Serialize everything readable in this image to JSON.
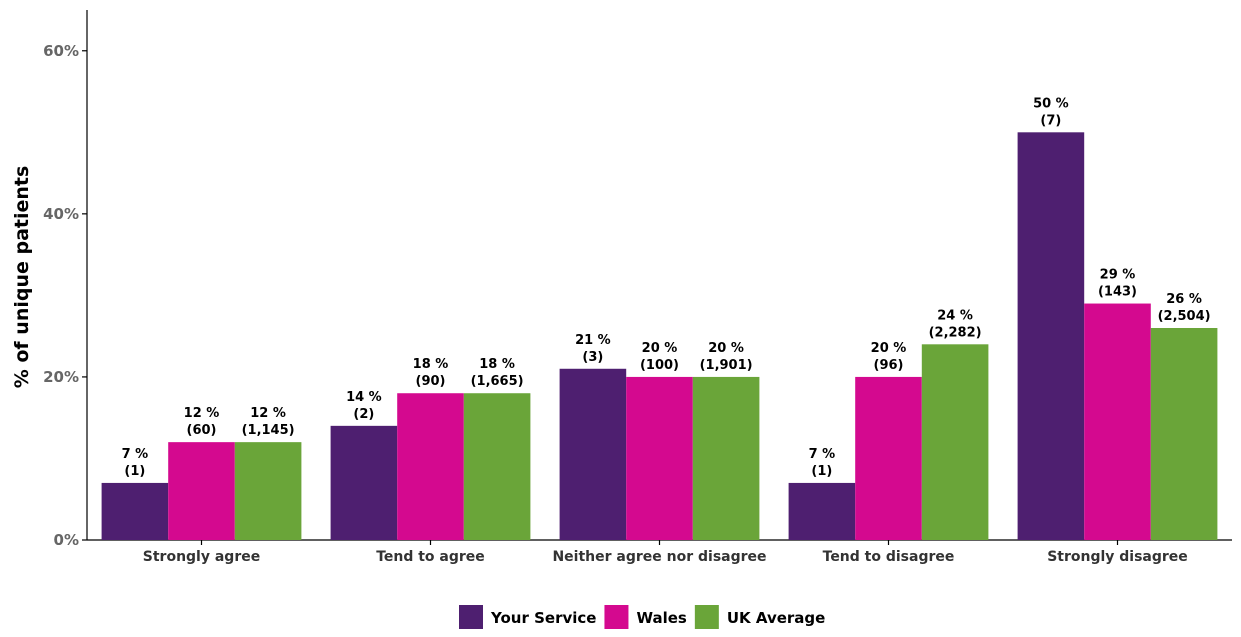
{
  "chart_data": {
    "type": "bar",
    "title": "",
    "xlabel": "",
    "ylabel": "% of unique patients",
    "ylim": [
      0,
      65
    ],
    "yticks": [
      0,
      20,
      40,
      60
    ],
    "ytick_labels": [
      "0%",
      "20%",
      "40%",
      "60%"
    ],
    "grid": false,
    "legend_position": "bottom",
    "categories": [
      "Strongly agree",
      "Tend to agree",
      "Neither agree nor disagree",
      "Tend to disagree",
      "Strongly disagree"
    ],
    "series": [
      {
        "name": "Your Service",
        "color": "#4e1f70",
        "values": [
          7,
          14,
          21,
          7,
          50
        ],
        "value_labels": [
          "7 %",
          "14 %",
          "21 %",
          "7 %",
          "50 %"
        ],
        "count_labels": [
          "(1)",
          "(2)",
          "(3)",
          "(1)",
          "(7)"
        ]
      },
      {
        "name": "Wales",
        "color": "#d4098f",
        "values": [
          12,
          18,
          20,
          20,
          29
        ],
        "value_labels": [
          "12 %",
          "18 %",
          "20 %",
          "20 %",
          "29 %"
        ],
        "count_labels": [
          "(60)",
          "(90)",
          "(100)",
          "(96)",
          "(143)"
        ]
      },
      {
        "name": "UK Average",
        "color": "#6aa539",
        "values": [
          12,
          18,
          20,
          24,
          26
        ],
        "value_labels": [
          "12 %",
          "18 %",
          "20 %",
          "24 %",
          "26 %"
        ],
        "count_labels": [
          "(1,145)",
          "(1,665)",
          "(1,901)",
          "(2,282)",
          "(2,504)"
        ]
      }
    ]
  }
}
